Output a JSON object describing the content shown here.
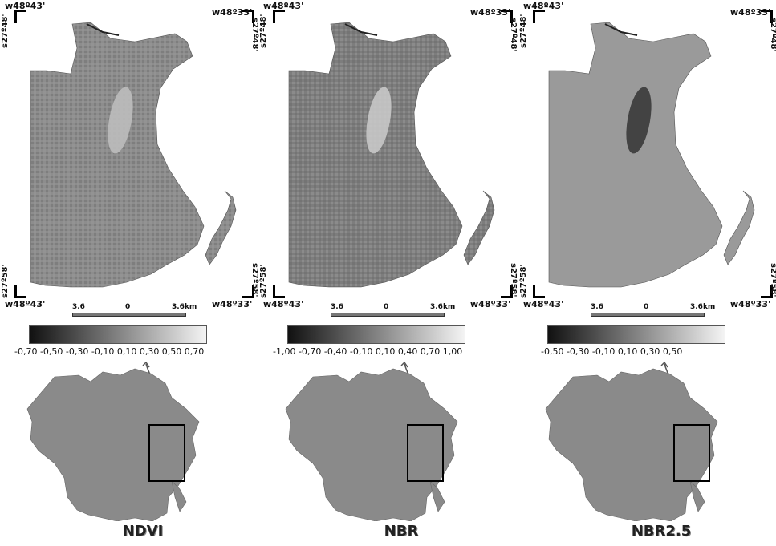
{
  "panels": [
    {
      "index_name": "NDVI",
      "coords": {
        "top_left_lon": "w48º43'",
        "top_right_lon": "w48º33'",
        "bottom_left_lon": "w48º43'",
        "bottom_right_lon": "w48º33'",
        "top_lat": "s27º48'",
        "bottom_lat": "s27º58'"
      },
      "scale": {
        "left": "3.6",
        "mid": "0",
        "right": "3.6km"
      },
      "legend_ticks": "-0,70 -0,50 -0,30 -0,10 0,10 0,30 0,50 0,70",
      "burn_tone": "#bdbdbd"
    },
    {
      "index_name": "NBR",
      "coords": {
        "top_left_lon": "w48º43'",
        "top_right_lon": "w48º33'",
        "bottom_left_lon": "w48º43'",
        "bottom_right_lon": "w48º33'",
        "top_lat": "s27º48'",
        "bottom_lat": "s27º58'"
      },
      "scale": {
        "left": "3.6",
        "mid": "0",
        "right": "3.6km"
      },
      "legend_ticks": "-1,00 -0,70 -0,40 -0,10 0,10 0,40 0,70 1,00",
      "burn_tone": "#c8c8c8"
    },
    {
      "index_name": "NBR2.5",
      "coords": {
        "top_left_lon": "w48º43'",
        "top_right_lon": "w48º33'",
        "bottom_left_lon": "w48º43'",
        "bottom_right_lon": "w48º33'",
        "top_lat": "s27º48'",
        "bottom_lat": "s27º58'"
      },
      "scale": {
        "left": "3.6",
        "mid": "0",
        "right": "3.6km"
      },
      "legend_ticks": "-0,50   -0,30   -0,10   0,10   0,30   0,50",
      "burn_tone": "#3a3a3a"
    }
  ],
  "colors": {
    "ramp_dark": "#111111",
    "ramp_light": "#f4f4f4",
    "land": "#8a8a8a",
    "land_dark": "#6e6e6e"
  }
}
